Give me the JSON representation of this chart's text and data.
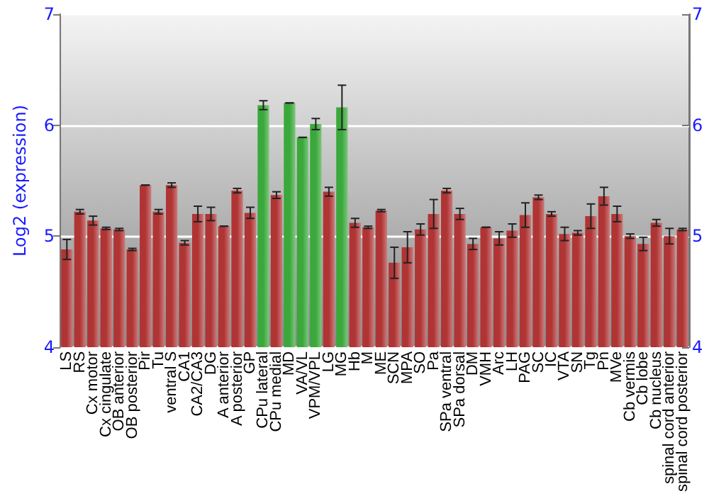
{
  "chart_data": {
    "type": "bar",
    "ylabel": "Log2 (expression)",
    "categories": [
      "LS",
      "RS",
      "Cx motor",
      "Cx cingulate",
      "OB anterior",
      "OB posterior",
      "Pir",
      "Tu",
      "ventral S",
      "CA1",
      "CA2/CA3",
      "DG",
      "A anterior",
      "A posterior",
      "GP",
      "CPu lateral",
      "CPu medial",
      "MD",
      "VA/VL",
      "VPM/VPL",
      "LG",
      "MG",
      "Hb",
      "M",
      "ME",
      "SCN",
      "MPA",
      "SO",
      "Pa",
      "SPa ventral",
      "SPa dorsal",
      "DM",
      "VMH",
      "Arc",
      "LH",
      "PAG",
      "SC",
      "IC",
      "VTA",
      "SN",
      "Tg",
      "Pn",
      "MVe",
      "Cb vermis",
      "Cb lobe",
      "Cb nucleus",
      "spinal cord anterior",
      "spinal cord posterior"
    ],
    "values": [
      4.88,
      5.22,
      5.14,
      5.07,
      5.06,
      4.88,
      5.46,
      5.22,
      5.46,
      4.94,
      5.2,
      5.2,
      5.09,
      5.41,
      5.21,
      6.18,
      5.37,
      6.2,
      5.89,
      6.01,
      5.4,
      6.16,
      5.12,
      5.08,
      5.23,
      4.76,
      4.9,
      5.06,
      5.2,
      5.41,
      5.2,
      4.93,
      5.08,
      4.98,
      5.05,
      5.19,
      5.35,
      5.2,
      5.02,
      5.03,
      5.18,
      5.36,
      5.2,
      5.0,
      4.93,
      5.12,
      5.0,
      5.06
    ],
    "errors": [
      0.09,
      0.02,
      0.04,
      0.01,
      0.01,
      0.01,
      null,
      0.02,
      0.02,
      0.02,
      0.07,
      0.06,
      null,
      0.02,
      0.05,
      0.04,
      0.03,
      null,
      null,
      0.05,
      0.04,
      0.2,
      0.04,
      0.01,
      0.01,
      0.14,
      0.14,
      0.05,
      0.13,
      0.02,
      0.05,
      0.05,
      null,
      0.06,
      0.06,
      0.11,
      0.02,
      0.02,
      0.06,
      0.02,
      0.11,
      0.08,
      0.07,
      0.02,
      0.06,
      0.03,
      0.07,
      0.01
    ],
    "colors": [
      "#b03434",
      "#b03434",
      "#b03434",
      "#b03434",
      "#b03434",
      "#b03434",
      "#b03434",
      "#b03434",
      "#b03434",
      "#b03434",
      "#b03434",
      "#b03434",
      "#b03434",
      "#b03434",
      "#b03434",
      "#3aa83a",
      "#b03434",
      "#3aa83a",
      "#3aa83a",
      "#3aa83a",
      "#b03434",
      "#3aa83a",
      "#b03434",
      "#b03434",
      "#b03434",
      "#b03434",
      "#b03434",
      "#b03434",
      "#b03434",
      "#b03434",
      "#b03434",
      "#b03434",
      "#b03434",
      "#b03434",
      "#b03434",
      "#b03434",
      "#b03434",
      "#b03434",
      "#b03434",
      "#b03434",
      "#b03434",
      "#b03434",
      "#b03434",
      "#b03434",
      "#b03434",
      "#b03434",
      "#b03434",
      "#b03434"
    ],
    "ylim": [
      4,
      7
    ],
    "yticks": [
      4,
      5,
      6,
      7
    ],
    "y2lim": [
      4,
      7
    ],
    "y2ticks": [
      4,
      5,
      6,
      7
    ],
    "grid": "y"
  }
}
